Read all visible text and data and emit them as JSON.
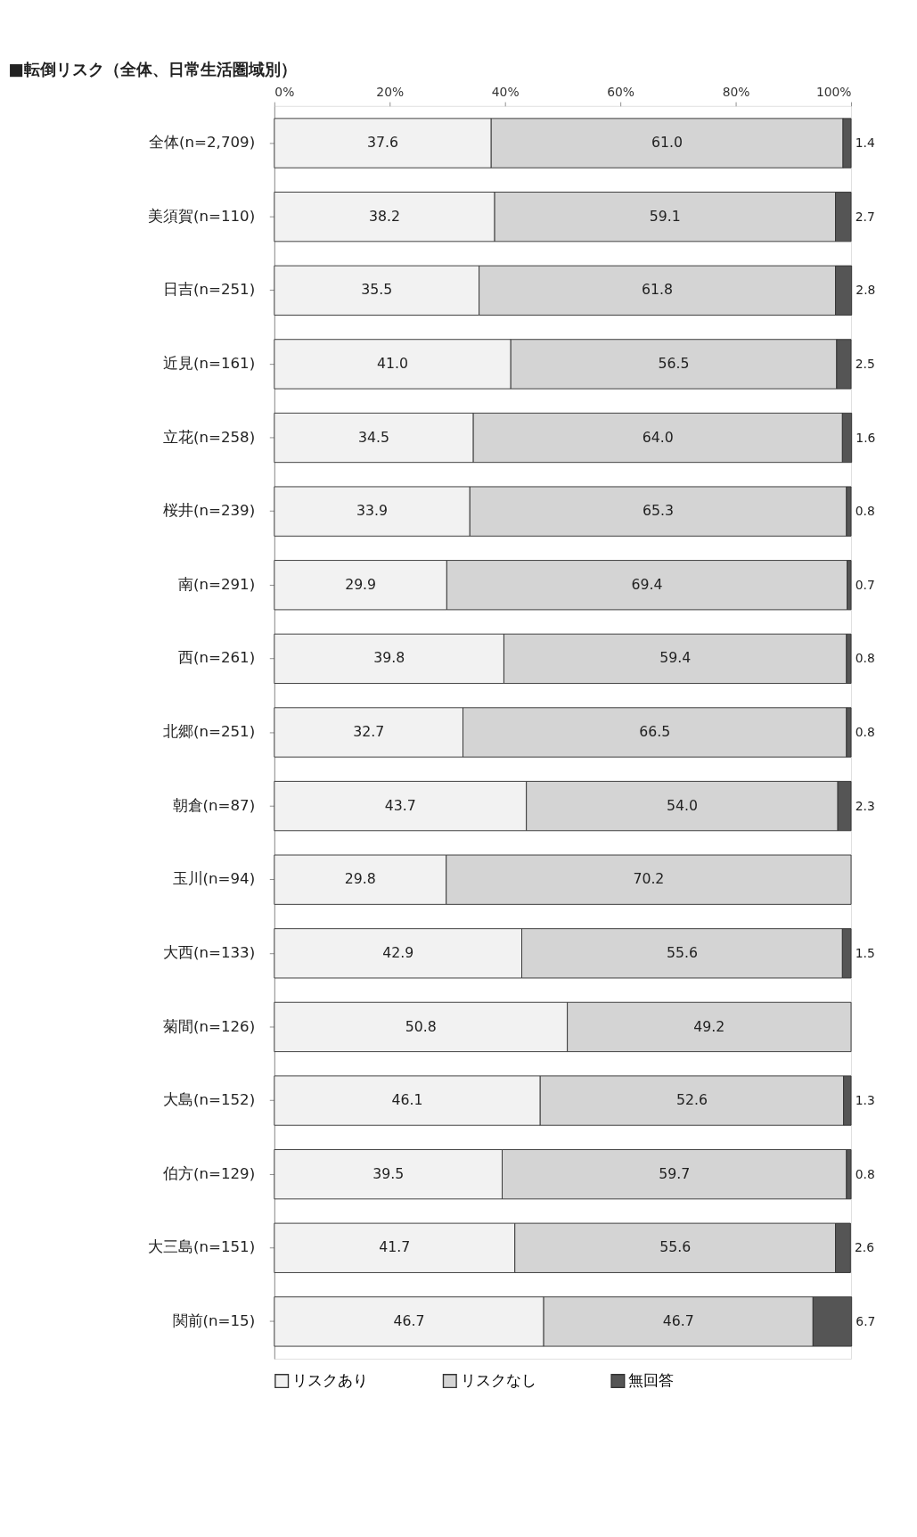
{
  "chart_data": {
    "type": "bar",
    "orientation": "horizontal",
    "stacked": true,
    "title": "■転倒リスク（全体、日常生活圏域別）",
    "categories": [
      "全体(n=2,709)",
      "美須賀(n=110)",
      "日吉(n=251)",
      "近見(n=161)",
      "立花(n=258)",
      "桜井(n=239)",
      "南(n=291)",
      "西(n=261)",
      "北郷(n=251)",
      "朝倉(n=87)",
      "玉川(n=94)",
      "大西(n=133)",
      "菊間(n=126)",
      "大島(n=152)",
      "伯方(n=129)",
      "大三島(n=151)",
      "関前(n=15)"
    ],
    "series": [
      {
        "name": "リスクあり",
        "color": "#f2f2f2",
        "values": [
          37.6,
          38.2,
          35.5,
          41.0,
          34.5,
          33.9,
          29.9,
          39.8,
          32.7,
          43.7,
          29.8,
          42.9,
          50.8,
          46.1,
          39.5,
          41.7,
          46.7
        ],
        "value_labels": [
          "37.6",
          "38.2",
          "35.5",
          "41.0",
          "34.5",
          "33.9",
          "29.9",
          "39.8",
          "32.7",
          "43.7",
          "29.8",
          "42.9",
          "50.8",
          "46.1",
          "39.5",
          "41.7",
          "46.7"
        ]
      },
      {
        "name": "リスクなし",
        "color": "#d4d4d4",
        "values": [
          61.0,
          59.1,
          61.8,
          56.5,
          64.0,
          65.3,
          69.4,
          59.4,
          66.5,
          54.0,
          70.2,
          55.6,
          49.2,
          52.6,
          59.7,
          55.6,
          46.7
        ],
        "value_labels": [
          "61.0",
          "59.1",
          "61.8",
          "56.5",
          "64.0",
          "65.3",
          "69.4",
          "59.4",
          "66.5",
          "54.0",
          "70.2",
          "55.6",
          "49.2",
          "52.6",
          "59.7",
          "55.6",
          "46.7"
        ]
      },
      {
        "name": "無回答",
        "color": "#555555",
        "values": [
          1.4,
          2.7,
          2.8,
          2.5,
          1.6,
          0.8,
          0.7,
          0.8,
          0.8,
          2.3,
          null,
          1.5,
          null,
          1.3,
          0.8,
          2.6,
          6.7
        ],
        "value_labels": [
          "1.4",
          "2.7",
          "2.8",
          "2.5",
          "1.6",
          "0.8",
          "0.7",
          "0.8",
          "0.8",
          "2.3",
          null,
          "1.5",
          null,
          "1.3",
          "0.8",
          "2.6",
          "6.7"
        ]
      }
    ],
    "xlim": [
      0,
      100
    ],
    "xticks": [
      {
        "value": 0,
        "label": "0%"
      },
      {
        "value": 20,
        "label": "20%"
      },
      {
        "value": 40,
        "label": "40%"
      },
      {
        "value": 60,
        "label": "60%"
      },
      {
        "value": 80,
        "label": "80%"
      },
      {
        "value": 100,
        "label": "100%"
      }
    ],
    "grid": false,
    "legend": "bottom"
  }
}
